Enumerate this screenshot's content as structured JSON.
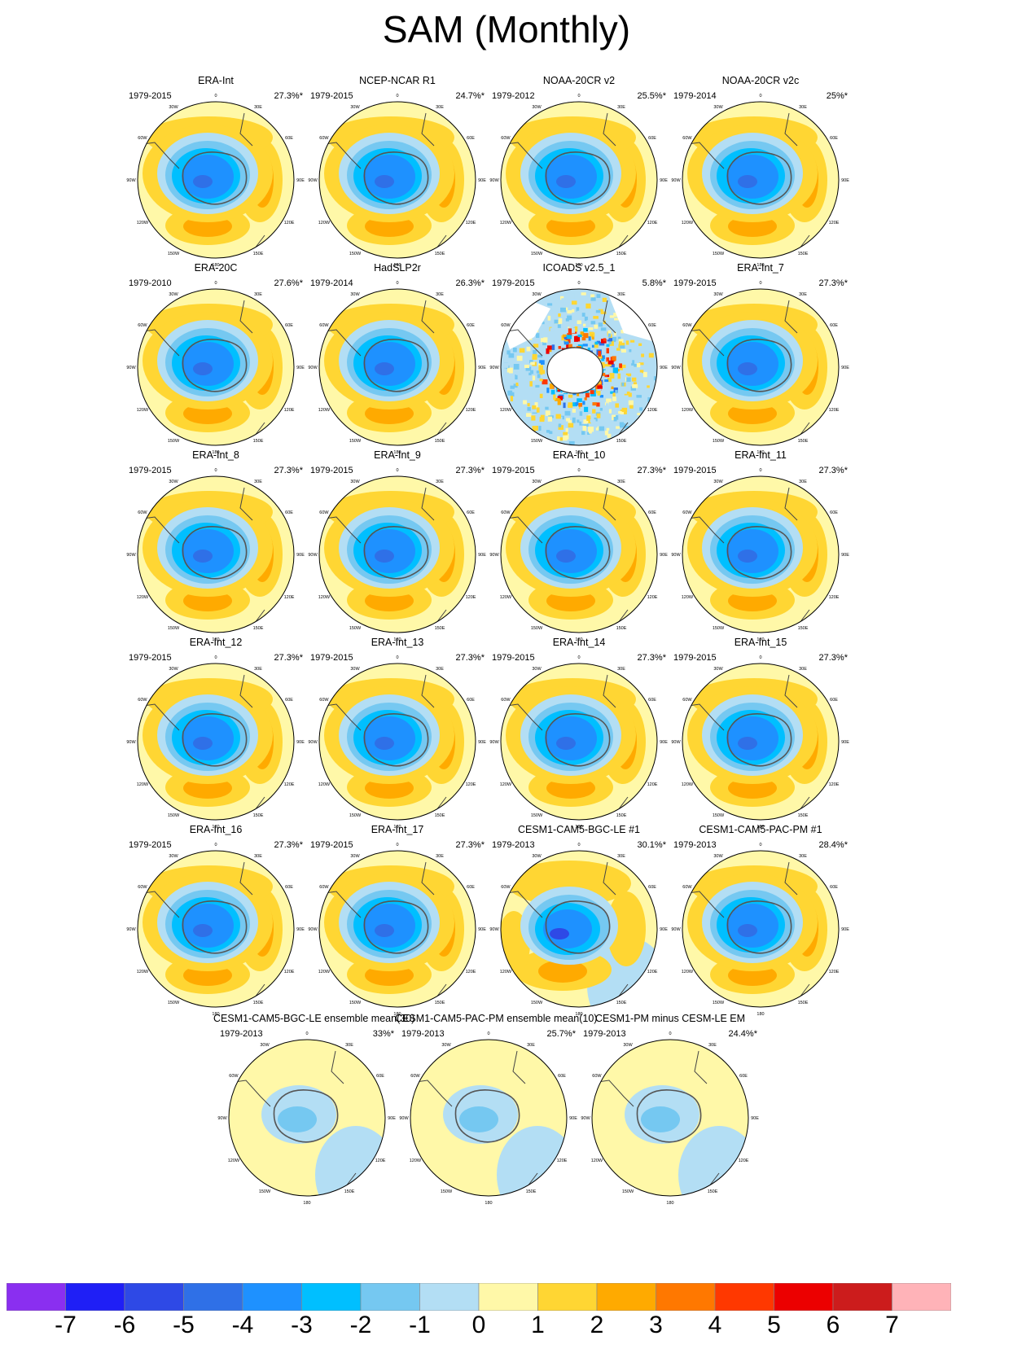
{
  "figure": {
    "title": "SAM (Monthly)"
  },
  "palette": [
    "#8a2ff0",
    "#1f1ff6",
    "#2e49e6",
    "#2f70e7",
    "#1e91ff",
    "#00bfff",
    "#75c8f1",
    "#b3def4",
    "#fff8a8",
    "#ffd633",
    "#ffaa00",
    "#ff7800",
    "#ff3800",
    "#ec0000",
    "#cc1c1c",
    "#ffb3b8"
  ],
  "chart_data": {
    "type": "heatmap",
    "description_of_values": "regression maps of sea level pressure onto SAM index",
    "colorbar": {
      "tick_labels": [
        "-7",
        "-6",
        "-5",
        "-4",
        "-3",
        "-2",
        "-1",
        "0",
        "1",
        "2",
        "3",
        "4",
        "5",
        "6",
        "7"
      ],
      "colors": [
        "#8a2ff0",
        "#1f1ff6",
        "#2e49e6",
        "#2f70e7",
        "#1e91ff",
        "#00bfff",
        "#75c8f1",
        "#b3def4",
        "#fff8a8",
        "#ffd633",
        "#ffaa00",
        "#ff7800",
        "#ff3800",
        "#ec0000",
        "#cc1c1c",
        "#ffb3b8"
      ]
    },
    "map_labels": [
      "0",
      "30E",
      "60E",
      "90E",
      "120E",
      "150E",
      "180",
      "150W",
      "120W",
      "90W",
      "60W",
      "30W"
    ],
    "panels": [
      {
        "name": "ERA-Int",
        "years": "1979-2015",
        "variance": "27.3%*",
        "style": "std"
      },
      {
        "name": "NCEP-NCAR R1",
        "years": "1979-2015",
        "variance": "24.7%*",
        "style": "std"
      },
      {
        "name": "NOAA-20CR v2",
        "years": "1979-2012",
        "variance": "25.5%*",
        "style": "std"
      },
      {
        "name": "NOAA-20CR v2c",
        "years": "1979-2014",
        "variance": "25%*",
        "style": "std"
      },
      {
        "name": "ERA-20C",
        "years": "1979-2010",
        "variance": "27.6%*",
        "style": "std"
      },
      {
        "name": "HadSLP2r",
        "years": "1979-2014",
        "variance": "26.3%*",
        "style": "std"
      },
      {
        "name": "ICOADS v2.5_1",
        "years": "1979-2015",
        "variance": "5.8%*",
        "style": "noisy"
      },
      {
        "name": "ERA-Int_7",
        "years": "1979-2015",
        "variance": "27.3%*",
        "style": "std"
      },
      {
        "name": "ERA-Int_8",
        "years": "1979-2015",
        "variance": "27.3%*",
        "style": "std"
      },
      {
        "name": "ERA-Int_9",
        "years": "1979-2015",
        "variance": "27.3%*",
        "style": "std"
      },
      {
        "name": "ERA-Int_10",
        "years": "1979-2015",
        "variance": "27.3%*",
        "style": "std"
      },
      {
        "name": "ERA-Int_11",
        "years": "1979-2015",
        "variance": "27.3%*",
        "style": "std"
      },
      {
        "name": "ERA-Int_12",
        "years": "1979-2015",
        "variance": "27.3%*",
        "style": "std"
      },
      {
        "name": "ERA-Int_13",
        "years": "1979-2015",
        "variance": "27.3%*",
        "style": "std"
      },
      {
        "name": "ERA-Int_14",
        "years": "1979-2015",
        "variance": "27.3%*",
        "style": "std"
      },
      {
        "name": "ERA-Int_15",
        "years": "1979-2015",
        "variance": "27.3%*",
        "style": "std"
      },
      {
        "name": "ERA-Int_16",
        "years": "1979-2015",
        "variance": "27.3%*",
        "style": "std"
      },
      {
        "name": "ERA-Int_17",
        "years": "1979-2015",
        "variance": "27.3%*",
        "style": "std"
      },
      {
        "name": "CESM1-CAM5-BGC-LE #1",
        "years": "1979-2013",
        "variance": "30.1%*",
        "style": "strong"
      },
      {
        "name": "CESM1-CAM5-PAC-PM #1",
        "years": "1979-2013",
        "variance": "28.4%*",
        "style": "std"
      },
      {
        "name": "CESM1-CAM5-BGC-LE ensemble mean(30)",
        "years": "1979-2013",
        "variance": "33%*",
        "style": "weak"
      },
      {
        "name": "CESM1-CAM5-PAC-PM ensemble mean(10)",
        "years": "1979-2013",
        "variance": "25.7%*",
        "style": "weak"
      },
      {
        "name": "CESM1-PM minus CESM-LE EM",
        "years": "1979-2013",
        "variance": "24.4%*",
        "style": "weak"
      }
    ]
  }
}
